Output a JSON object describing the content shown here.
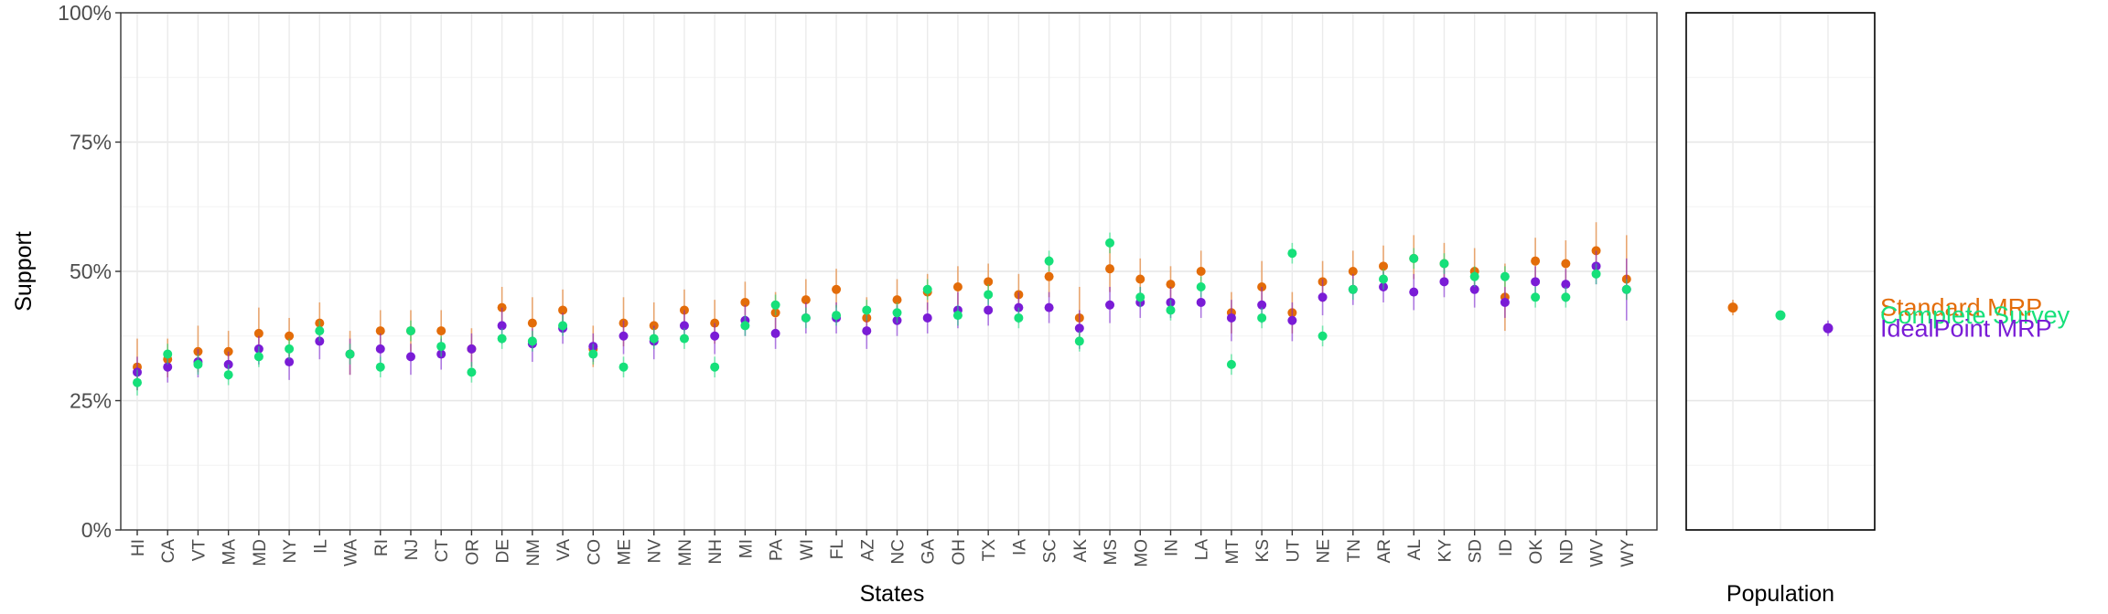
{
  "chart_data": [
    {
      "type": "scatter",
      "title": "",
      "xlabel": "States",
      "ylabel": "Support",
      "ylim": [
        0,
        100
      ],
      "y_ticks": [
        "0%",
        "25%",
        "50%",
        "75%",
        "100%"
      ],
      "grid": true,
      "error_bars": true,
      "categories": [
        "HI",
        "CA",
        "VT",
        "MA",
        "MD",
        "NY",
        "IL",
        "WA",
        "RI",
        "NJ",
        "CT",
        "OR",
        "DE",
        "NM",
        "VA",
        "CO",
        "ME",
        "NV",
        "MN",
        "NH",
        "MI",
        "PA",
        "WI",
        "FL",
        "AZ",
        "NC",
        "GA",
        "OH",
        "TX",
        "IA",
        "SC",
        "AK",
        "MS",
        "MO",
        "IN",
        "LA",
        "MT",
        "KS",
        "UT",
        "NE",
        "TN",
        "AR",
        "AL",
        "KY",
        "SD",
        "ID",
        "OK",
        "ND",
        "WV",
        "WY"
      ],
      "series": [
        {
          "name": "Standard MRP",
          "color": "#e36c09",
          "values": [
            31.5,
            33,
            34.5,
            34.5,
            38,
            37.5,
            40,
            34,
            38.5,
            38.5,
            38.5,
            35,
            43,
            40,
            42.5,
            35,
            40,
            39.5,
            42.5,
            40,
            44,
            42,
            44.5,
            46.5,
            41,
            44.5,
            46,
            47,
            48,
            45.5,
            49,
            41,
            50.5,
            48.5,
            47.5,
            50,
            42,
            47,
            42,
            48,
            50,
            51,
            52.5,
            51.5,
            50,
            45,
            52,
            51.5,
            54,
            48.5
          ],
          "lower": [
            27,
            29.5,
            30.5,
            31,
            33.5,
            33.5,
            36,
            30,
            34.5,
            34.5,
            35,
            31.5,
            39,
            35.5,
            39,
            31.5,
            35.5,
            35.5,
            38.5,
            36,
            40,
            38,
            41,
            43,
            37.5,
            41,
            42.5,
            43.5,
            44.5,
            42,
            45,
            36,
            46,
            45,
            44,
            46.5,
            38,
            43,
            38,
            44,
            46.5,
            47,
            48.5,
            48,
            46.5,
            38.5,
            48,
            48,
            49,
            44.5
          ],
          "upper": [
            37,
            37,
            39.5,
            38.5,
            43,
            41,
            44,
            38.5,
            42.5,
            42.5,
            42.5,
            39,
            47,
            45,
            46.5,
            39.5,
            45,
            44,
            46.5,
            44.5,
            48,
            46,
            48.5,
            50.5,
            45,
            48.5,
            49.5,
            51,
            51.5,
            49.5,
            53,
            47,
            55,
            52.5,
            51,
            54,
            46,
            52,
            46,
            52,
            54,
            55,
            57,
            55.5,
            54.5,
            51.5,
            56.5,
            56,
            59.5,
            57
          ]
        },
        {
          "name": "IdealPoint MRP",
          "color": "#7a1cd6",
          "values": [
            30.5,
            31.5,
            32.5,
            32,
            35,
            32.5,
            36.5,
            34,
            35,
            33.5,
            34,
            35,
            39.5,
            36,
            39,
            35.5,
            37.5,
            36.5,
            39.5,
            37.5,
            40.5,
            38,
            41,
            41,
            38.5,
            40.5,
            41,
            42.5,
            42.5,
            43,
            43,
            39,
            43.5,
            44,
            44,
            44,
            41,
            43.5,
            40.5,
            45,
            46.5,
            47,
            46,
            48,
            46.5,
            44,
            48,
            47.5,
            51,
            46.5
          ],
          "lower": [
            27,
            28.5,
            29.5,
            29,
            32,
            29,
            33,
            30,
            31.5,
            30,
            31,
            31.5,
            36,
            32.5,
            36,
            32.5,
            34,
            33,
            36.5,
            34,
            37.5,
            35,
            38,
            38,
            35,
            37.5,
            38,
            39,
            39.5,
            40,
            40,
            35,
            40,
            41,
            41,
            41,
            36.5,
            40,
            36.5,
            41.5,
            43.5,
            44,
            42.5,
            45,
            43,
            41,
            44.5,
            44,
            47.5,
            40.5
          ],
          "upper": [
            33.5,
            34,
            35,
            34.5,
            37.5,
            35,
            39,
            37,
            38,
            36,
            37,
            38,
            43,
            39,
            42,
            38,
            40.5,
            39.5,
            42.5,
            40,
            43.5,
            41,
            44,
            44,
            41.5,
            43.5,
            44,
            46,
            45.5,
            46,
            46,
            42.5,
            47,
            47,
            47,
            47,
            44.5,
            47,
            44,
            48.5,
            49.5,
            50,
            49.5,
            51,
            50,
            47,
            51,
            50.5,
            54,
            52.5
          ]
        },
        {
          "name": "Complete Survey",
          "color": "#16e07a",
          "values": [
            28.5,
            34,
            32,
            30,
            33.5,
            35,
            38.5,
            34,
            31.5,
            38.5,
            35.5,
            30.5,
            37,
            36.5,
            39.5,
            34,
            31.5,
            37,
            37,
            31.5,
            39.5,
            43.5,
            41,
            41.5,
            42.5,
            42,
            46.5,
            41.5,
            45.5,
            41,
            52,
            36.5,
            55.5,
            45,
            42.5,
            47,
            32,
            41,
            53.5,
            37.5,
            46.5,
            48.5,
            52.5,
            51.5,
            49,
            49,
            45,
            45,
            49.5,
            46.5
          ],
          "lower": [
            26,
            32,
            30,
            28,
            31.5,
            33,
            36.5,
            32,
            29.5,
            36.5,
            33.5,
            28.5,
            35,
            34.5,
            37.5,
            32,
            29.5,
            35,
            35,
            29.5,
            37.5,
            41.5,
            39,
            39.5,
            40.5,
            40,
            44.5,
            39.5,
            43.5,
            39,
            50,
            34.5,
            53.5,
            43,
            40.5,
            45,
            30,
            39,
            51.5,
            35.5,
            44.5,
            46.5,
            50.5,
            49.5,
            47,
            47,
            43,
            43,
            47.5,
            44.5
          ],
          "upper": [
            31,
            36,
            34,
            32,
            35.5,
            37,
            40.5,
            36,
            33.5,
            40.5,
            37.5,
            32.5,
            39,
            38.5,
            41.5,
            36,
            33.5,
            39,
            39,
            33.5,
            41.5,
            45.5,
            43,
            43.5,
            44.5,
            44,
            48.5,
            43.5,
            47.5,
            43,
            54,
            38.5,
            57.5,
            47,
            44.5,
            49,
            34,
            43,
            55.5,
            39.5,
            48.5,
            50.5,
            54.5,
            53.5,
            51,
            51,
            47,
            47,
            51.5,
            48.5
          ]
        }
      ]
    },
    {
      "type": "scatter",
      "title": "",
      "xlabel": "Population",
      "ylabel": "",
      "ylim": [
        0,
        100
      ],
      "grid": true,
      "error_bars": true,
      "legend": "right",
      "points": [
        {
          "series": "Standard MRP",
          "color": "#e36c09",
          "value": 43,
          "lower": 41.5,
          "upper": 44.5,
          "label": "Standard MRP"
        },
        {
          "series": "Complete Survey",
          "color": "#16e07a",
          "value": 41.5,
          "lower": 41.5,
          "upper": 41.5,
          "label": "Complete Survey"
        },
        {
          "series": "IdealPoint MRP",
          "color": "#7a1cd6",
          "value": 39,
          "lower": 37.5,
          "upper": 40.5,
          "label": "IdealPoint MRP"
        }
      ]
    }
  ]
}
